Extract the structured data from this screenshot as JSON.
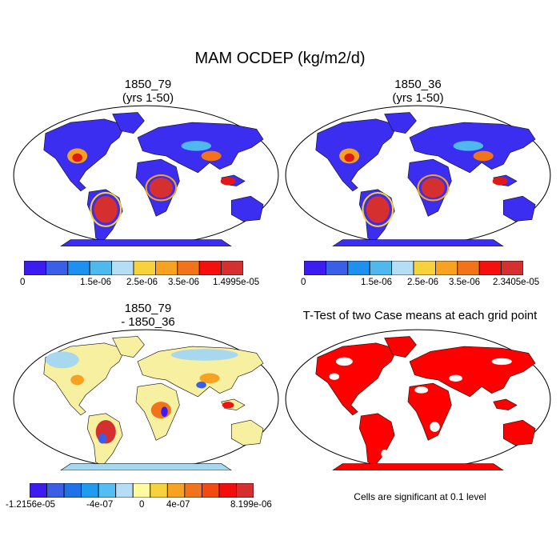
{
  "main_title": "MAM OCDEP (kg/m2/d)",
  "panels": {
    "top_left": {
      "line1": "1850_79",
      "line2": "(yrs 1-50)"
    },
    "top_right": {
      "line1": "1850_36",
      "line2": "(yrs 1-50)"
    },
    "bottom_left": {
      "line1": "1850_79",
      "line2": "- 1850_36"
    },
    "bottom_right": {
      "title": "T-Test of two Case means at each grid point",
      "note": "Cells are significant at 0.1 level"
    }
  },
  "colorbars": {
    "top_left": {
      "colors": [
        "#3c1cf0",
        "#3b5ee6",
        "#1f8ff0",
        "#4fb8ef",
        "#b3def5",
        "#f7d23c",
        "#f7a221",
        "#f27319",
        "#f51010",
        "#d62f2f"
      ],
      "labels": [
        "0",
        "1.5e-06",
        "2.5e-06",
        "3.5e-06",
        "1.4995e-05"
      ]
    },
    "top_right": {
      "colors": [
        "#3c1cf0",
        "#3b5ee6",
        "#1f8ff0",
        "#4fb8ef",
        "#b3def5",
        "#f7d23c",
        "#f7a221",
        "#f27319",
        "#f51010",
        "#d62f2f"
      ],
      "labels": [
        "0",
        "1.5e-06",
        "2.5e-06",
        "3.5e-06",
        "2.3405e-05"
      ]
    },
    "bottom_left": {
      "colors": [
        "#3c1cf0",
        "#3b5ee6",
        "#1f72e8",
        "#1f9cf0",
        "#54bdf2",
        "#b3def5",
        "#fffba0",
        "#f7d23c",
        "#f7a221",
        "#f27319",
        "#f24a10",
        "#f50d0d",
        "#d62f2f"
      ],
      "labels": [
        "-1.2156e-05",
        "-4e-07",
        "0",
        "4e-07",
        "8.199e-06"
      ]
    }
  },
  "map_colors": {
    "land_base_top": "#3b2ef0",
    "land_base_diff": "#f7f0a0",
    "ttest_fill": "#ff0000",
    "ocean": "#ffffff"
  }
}
